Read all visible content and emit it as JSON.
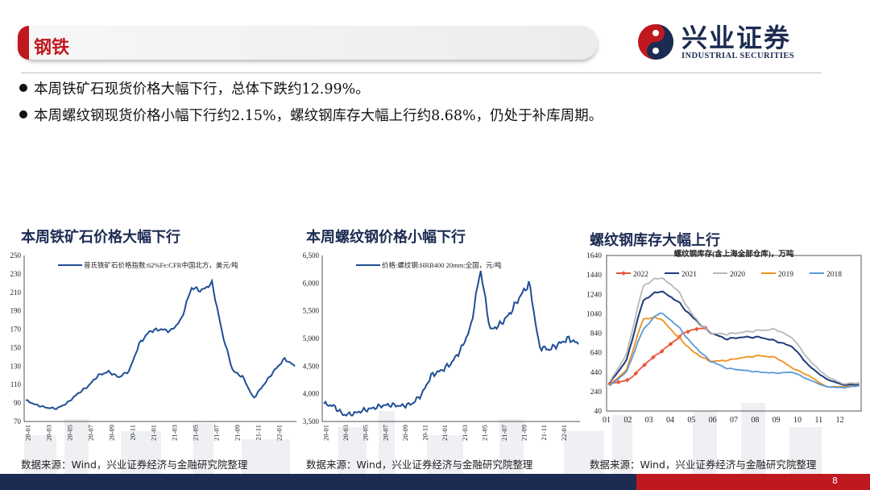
{
  "header": {
    "section_title": "钢铁",
    "logo_cn": "兴业证券",
    "logo_en": "INDUSTRIAL SECURITIES"
  },
  "bullets": [
    "本周铁矿石现货价格大幅下行，总体下跌约12.99%。",
    "本周螺纹钢现货价格小幅下行约2.15%，螺纹钢库存大幅上行约8.68%，仍处于补库周期。"
  ],
  "charts": [
    {
      "heading": "本周铁矿石价格大幅下行",
      "source": "数据来源：Wind，兴业证券经济与金融研究院整理"
    },
    {
      "heading": "本周螺纹钢价格小幅下行",
      "source": "数据来源：Wind，兴业证券经济与金融研究院整理"
    },
    {
      "heading": "螺纹钢库存大幅上行",
      "source": "数据来源：Wind，兴业证券经济与金融研究院整理"
    }
  ],
  "page_number": "8",
  "colors": {
    "brand_red": "#c0181f",
    "brand_navy": "#1c2b52",
    "line_blue": "#1f4e96"
  },
  "chart_data": [
    {
      "type": "line",
      "series": [
        {
          "name": "普氏铁矿石价格指数:62%Fe:CFR中国北方，美元/吨",
          "color": "#1f4e96",
          "x": [
            "20-01",
            "20-02",
            "20-03",
            "20-04",
            "20-05",
            "20-06",
            "20-07",
            "20-08",
            "20-09",
            "20-10",
            "20-11",
            "20-12",
            "21-01",
            "21-02",
            "21-03",
            "21-04",
            "21-05",
            "21-06",
            "21-07",
            "21-08",
            "21-09",
            "21-10",
            "21-11",
            "21-12",
            "22-01",
            "22-02",
            "22-03"
          ],
          "values": [
            93,
            88,
            85,
            84,
            90,
            100,
            108,
            120,
            124,
            118,
            125,
            155,
            168,
            170,
            168,
            180,
            215,
            212,
            220,
            165,
            125,
            118,
            95,
            110,
            125,
            138,
            130
          ]
        }
      ],
      "x_ticks": [
        "20-01",
        "20-03",
        "20-05",
        "20-07",
        "20-09",
        "20-11",
        "21-01",
        "21-03",
        "21-05",
        "21-07",
        "21-09",
        "21-11",
        "22-01"
      ],
      "ylim": [
        70,
        250
      ],
      "y_ticks": [
        70,
        90,
        110,
        130,
        150,
        170,
        190,
        210,
        230,
        250
      ]
    },
    {
      "type": "line",
      "series": [
        {
          "name": "价格:螺纹钢:HRB400 20mm:全国，元/吨",
          "color": "#1f4e96",
          "x": [
            "20-01",
            "20-02",
            "20-03",
            "20-04",
            "20-05",
            "20-06",
            "20-07",
            "20-08",
            "20-09",
            "20-10",
            "20-11",
            "20-12",
            "21-01",
            "21-02",
            "21-03",
            "21-04",
            "21-05",
            "21-06",
            "21-07",
            "21-08",
            "21-09",
            "21-10",
            "21-11",
            "21-12",
            "22-01",
            "22-02",
            "22-03"
          ],
          "values": [
            3820,
            3780,
            3620,
            3640,
            3700,
            3740,
            3790,
            3800,
            3780,
            3820,
            3990,
            4340,
            4420,
            4550,
            4800,
            5200,
            6250,
            5150,
            5250,
            5450,
            5750,
            6000,
            4850,
            4800,
            4900,
            5000,
            4900
          ]
        }
      ],
      "x_ticks": [
        "20-01",
        "20-03",
        "20-05",
        "20-07",
        "20-09",
        "20-11",
        "21-01",
        "21-03",
        "21-05",
        "21-07",
        "21-09",
        "21-11",
        "22-01"
      ],
      "ylim": [
        3500,
        6500
      ],
      "y_ticks": [
        "3,500",
        "4,000",
        "4,500",
        "5,000",
        "5,500",
        "6,000",
        "6,500"
      ]
    },
    {
      "type": "line",
      "title": "螺纹钢库存(含上海全部仓库)，万吨",
      "x_ticks": [
        "01",
        "02",
        "03",
        "04",
        "05",
        "06",
        "07",
        "08",
        "09",
        "10",
        "11",
        "12"
      ],
      "ylim": [
        40,
        1640
      ],
      "y_ticks": [
        40,
        240,
        440,
        640,
        840,
        1040,
        1240,
        1440,
        1640
      ],
      "series": [
        {
          "name": "2022",
          "color": "#e8573b",
          "values": [
            320,
            360,
            550,
            700,
            860,
            900
          ]
        },
        {
          "name": "2021",
          "color": "#1f3a7a",
          "values": [
            330,
            560,
            1180,
            1280,
            1180,
            1000,
            850,
            780,
            800,
            800,
            760,
            700,
            500,
            370,
            310,
            310
          ]
        },
        {
          "name": "2020",
          "color": "#b8b8b8",
          "values": [
            340,
            620,
            1330,
            1420,
            1300,
            1020,
            840,
            830,
            850,
            870,
            880,
            790,
            560,
            400,
            320,
            330
          ]
        },
        {
          "name": "2019",
          "color": "#f0901e",
          "values": [
            310,
            460,
            990,
            1000,
            820,
            650,
            550,
            560,
            590,
            610,
            590,
            480,
            400,
            290,
            290,
            300
          ]
        },
        {
          "name": "2018",
          "color": "#5a9bd5",
          "values": [
            300,
            440,
            880,
            1060,
            930,
            720,
            560,
            480,
            460,
            440,
            430,
            440,
            360,
            290,
            280,
            300
          ]
        }
      ]
    }
  ]
}
